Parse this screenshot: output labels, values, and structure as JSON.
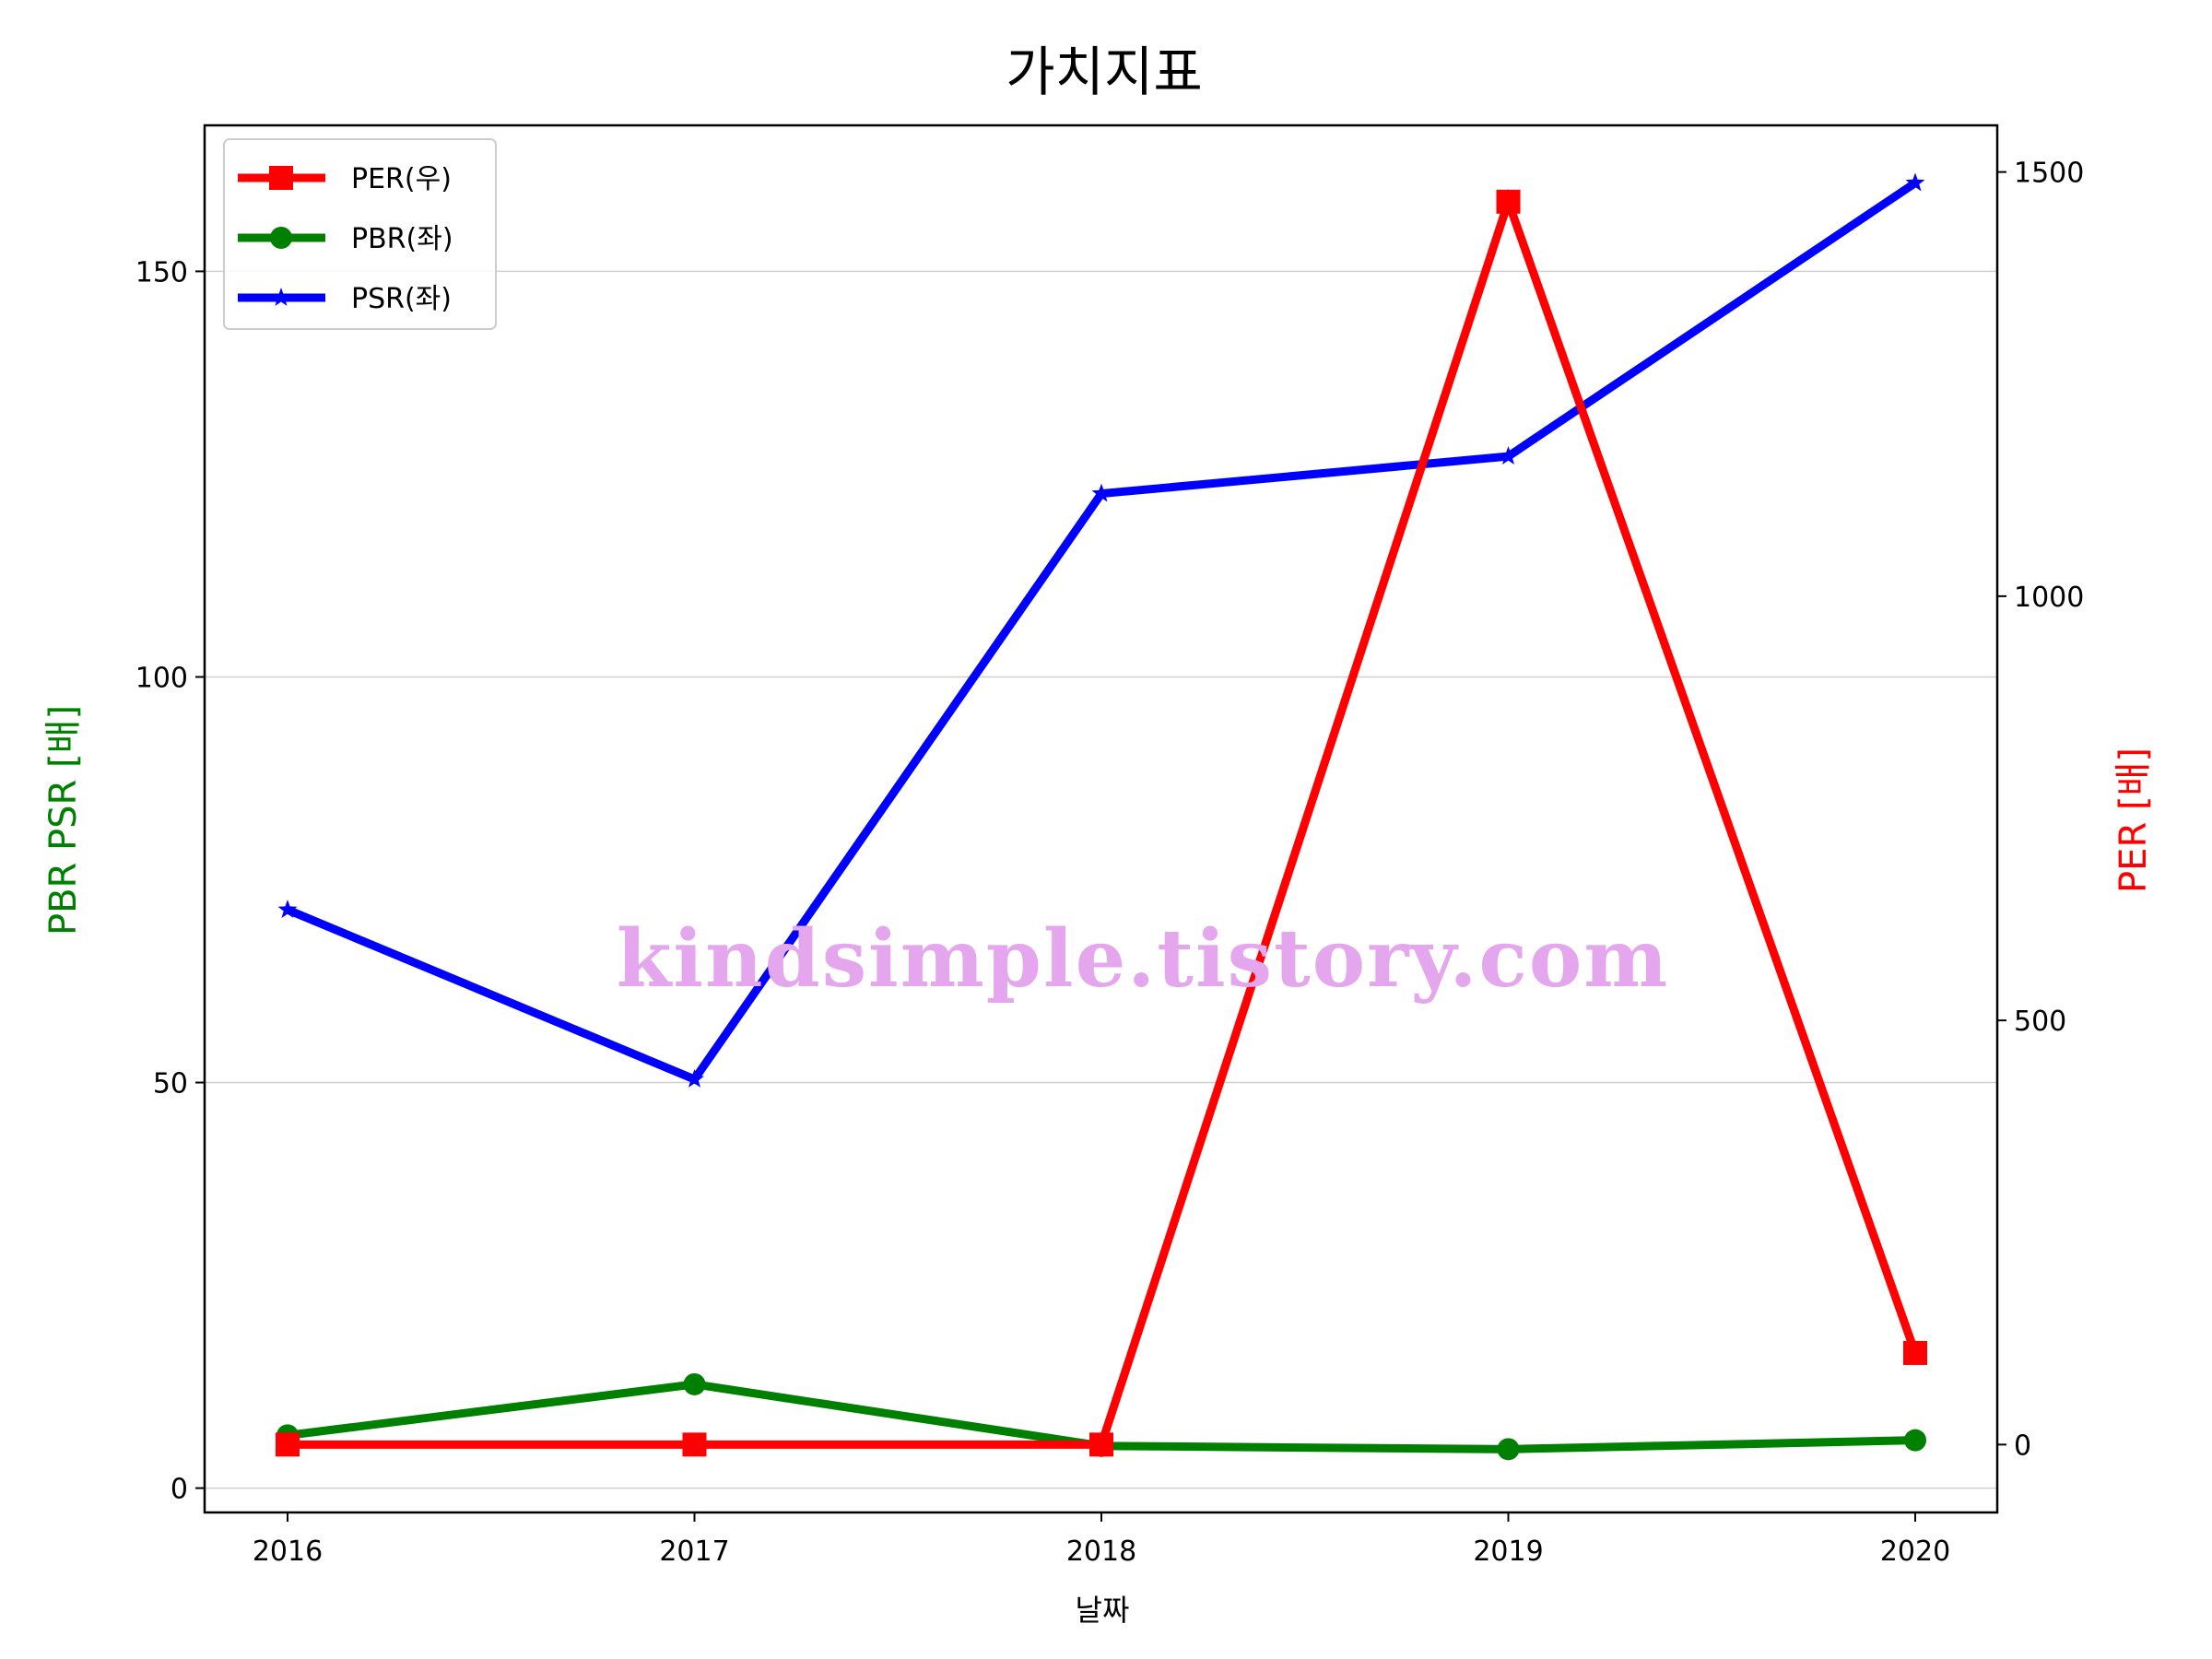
{
  "chart_data": {
    "type": "line",
    "title": "가치지표",
    "xlabel": "날짜",
    "ylabel_left": "PBR PSR [배]",
    "ylabel_right": "PER [배]",
    "categories": [
      "2016",
      "2017",
      "2018",
      "2019",
      "2020"
    ],
    "ylim_left": [
      -3,
      168
    ],
    "ylim_right": [
      -80,
      1555
    ],
    "yticks_left": [
      0,
      50,
      100,
      150
    ],
    "yticks_right": [
      0,
      500,
      1000,
      1500
    ],
    "grid": true,
    "legend_position": "top-left",
    "series": [
      {
        "name": "PER(우)",
        "axis": "right",
        "color": "#ff0000",
        "marker": "square",
        "values": [
          0,
          0,
          0,
          1465,
          108
        ]
      },
      {
        "name": "PBR(좌)",
        "axis": "left",
        "color": "#008000",
        "marker": "circle",
        "values": [
          6.5,
          12.8,
          5.2,
          4.8,
          5.9
        ]
      },
      {
        "name": "PSR(좌)",
        "axis": "left",
        "color": "#0000ff",
        "marker": "star",
        "values": [
          71.3,
          50.4,
          122.6,
          127.2,
          160.9
        ]
      }
    ]
  },
  "watermark": "kindsimple.tistory.com"
}
